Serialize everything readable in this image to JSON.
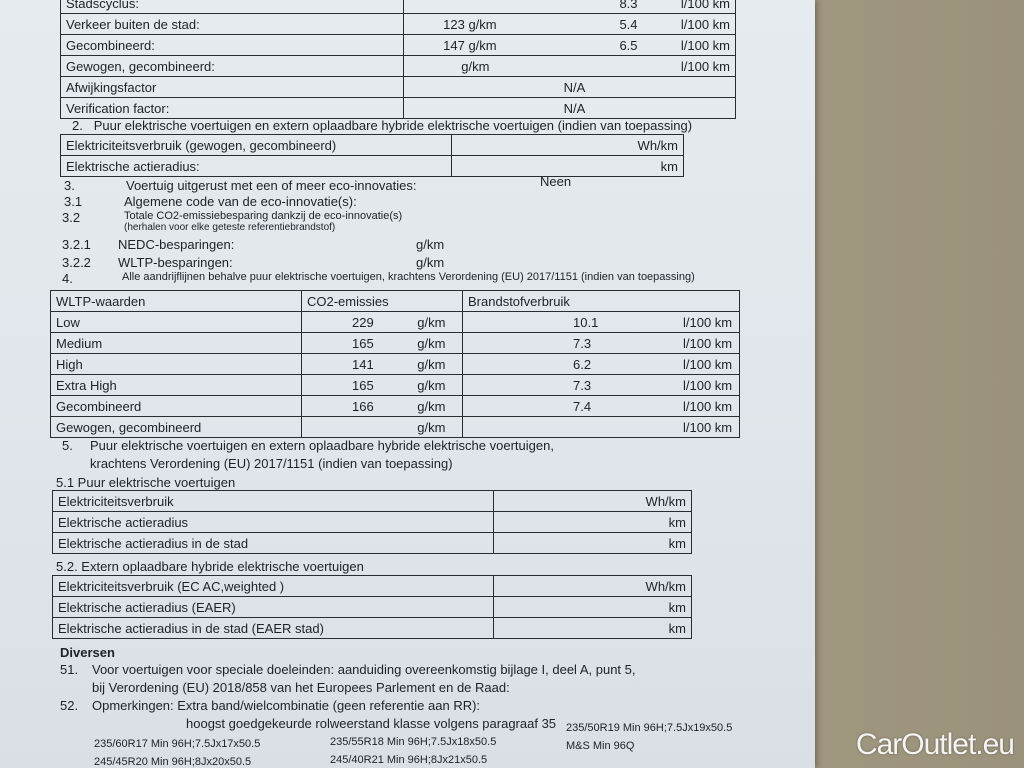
{
  "table1": [
    {
      "label": "Stadscyclus:",
      "co2": "",
      "co2_unit": "",
      "fuel": "8.3",
      "fuel_unit": "l/100 km"
    },
    {
      "label": "Verkeer buiten de stad:",
      "co2": "123",
      "co2_unit": "g/km",
      "fuel": "5.4",
      "fuel_unit": "l/100 km"
    },
    {
      "label": "Gecombineerd:",
      "co2": "147",
      "co2_unit": "g/km",
      "fuel": "6.5",
      "fuel_unit": "l/100 km"
    },
    {
      "label": "Gewogen, gecombineerd:",
      "co2": "",
      "co2_unit": "g/km",
      "fuel": "",
      "fuel_unit": "l/100 km"
    },
    {
      "label": "Afwijkingsfactor",
      "value": "N/A"
    },
    {
      "label": "Verification factor:",
      "value": "N/A"
    }
  ],
  "s2": {
    "num": "2.",
    "title": "Puur elektrische voertuigen en extern oplaadbare hybride elektrische voertuigen (indien van toepassing)",
    "rows": [
      {
        "label": "Elektriciteitsverbruik (gewogen, gecombineerd)",
        "unit": "Wh/km"
      },
      {
        "label": "Elektrische actieradius:",
        "unit": "km"
      }
    ]
  },
  "s3": {
    "num": "3.",
    "title": "Voertuig uitgerust met een of meer eco-innovaties:",
    "value": "Neen"
  },
  "s31": {
    "num": "3.1",
    "title": "Algemene code van de eco-innovatie(s):"
  },
  "s32": {
    "num": "3.2",
    "title": "Totale CO2-emissiebesparing dankzij de eco-innovatie(s)",
    "sub": "(herhalen voor elke geteste referentiebrandstof)"
  },
  "s321": {
    "num": "3.2.1",
    "title": "NEDC-besparingen:",
    "unit": "g/km"
  },
  "s322": {
    "num": "3.2.2",
    "title": "WLTP-besparingen:",
    "unit": "g/km"
  },
  "s4": {
    "num": "4.",
    "title": "Alle aandrijflijnen behalve puur elektrische voertuigen, krachtens Verordening (EU) 2017/1151 (indien van toepassing)"
  },
  "wltp": {
    "h1": "WLTP-waarden",
    "h2": "CO2-emissies",
    "h3": "Brandstofverbruik",
    "rows": [
      {
        "label": "Low",
        "co2": "229",
        "co2_unit": "g/km",
        "fuel": "10.1",
        "fuel_unit": "l/100 km"
      },
      {
        "label": "Medium",
        "co2": "165",
        "co2_unit": "g/km",
        "fuel": "7.3",
        "fuel_unit": "l/100 km"
      },
      {
        "label": "High",
        "co2": "141",
        "co2_unit": "g/km",
        "fuel": "6.2",
        "fuel_unit": "l/100 km"
      },
      {
        "label": "Extra High",
        "co2": "165",
        "co2_unit": "g/km",
        "fuel": "7.3",
        "fuel_unit": "l/100 km"
      },
      {
        "label": "Gecombineerd",
        "co2": "166",
        "co2_unit": "g/km",
        "fuel": "7.4",
        "fuel_unit": "l/100 km"
      },
      {
        "label": "Gewogen, gecombineerd",
        "co2": "",
        "co2_unit": "g/km",
        "fuel": "",
        "fuel_unit": "l/100 km"
      }
    ]
  },
  "s5": {
    "num": "5.",
    "line1": "Puur elektrische voertuigen en extern oplaadbare hybride elektrische voertuigen,",
    "line2": "krachtens Verordening (EU) 2017/1151 (indien van toepassing)"
  },
  "s51": {
    "title": "5.1  Puur elektrische voertuigen",
    "rows": [
      {
        "label": "Elektriciteitsverbruik",
        "unit": "Wh/km"
      },
      {
        "label": "Elektrische actieradius",
        "unit": "km"
      },
      {
        "label": "Elektrische actieradius in de stad",
        "unit": "km"
      }
    ]
  },
  "s52": {
    "title": "5.2.  Extern oplaadbare hybride elektrische voertuigen",
    "rows": [
      {
        "label": "Elektriciteitsverbruik (EC AC,weighted )",
        "unit": "Wh/km"
      },
      {
        "label": "Elektrische actieradius (EAER)",
        "unit": "km"
      },
      {
        "label": "Elektrische actieradius in de stad (EAER stad)",
        "unit": "km"
      }
    ]
  },
  "diversen": "Diversen",
  "s51b": {
    "num": "51.",
    "line1": "Voor voertuigen voor speciale doeleinden: aanduiding overeenkomstig bijlage I, deel A, punt 5,",
    "line2": "bij Verordening (EU) 2018/858 van het Europees Parlement en de Raad:"
  },
  "s52b": {
    "num": "52.",
    "line1": "Opmerkingen: Extra band/wielcombinatie (geen referentie aan RR):",
    "line2": "hoogst goedgekeurde rolweerstand klasse volgens paragraaf 35",
    "tyres": [
      "235/60R17 Min 96H;7.5Jx17x50.5",
      "235/55R18 Min 96H;7.5Jx18x50.5",
      "235/50R19 Min 96H;7.5Jx19x50.5",
      "245/45R20 Min 96H;8Jx20x50.5",
      "245/40R21 Min 96H;8Jx21x50.5",
      "M&S Min 96Q"
    ]
  },
  "watermark": "CarOutlet.eu"
}
